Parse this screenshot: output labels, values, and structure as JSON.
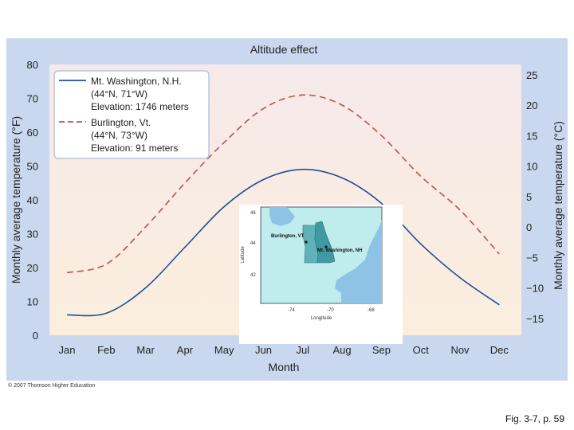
{
  "chart_data": {
    "type": "line",
    "title": "Altitude effect",
    "xlabel": "Month",
    "ylabel_left": "Monthly average temperature (°F)",
    "ylabel_right": "Monthly average temperature (°C)",
    "categories": [
      "Jan",
      "Feb",
      "Mar",
      "Apr",
      "May",
      "Jun",
      "Jul",
      "Aug",
      "Sep",
      "Oct",
      "Nov",
      "Dec"
    ],
    "ylim_f": [
      0,
      80
    ],
    "yticks_f": [
      "0",
      "10",
      "20",
      "30",
      "40",
      "50",
      "60",
      "70",
      "80"
    ],
    "ylim_c": [
      -17.8,
      26.7
    ],
    "yticks_c": [
      "−15",
      "−10",
      "−5",
      "0",
      "5",
      "10",
      "15",
      "20",
      "25"
    ],
    "series": [
      {
        "name": "Mt. Washington, N.H.",
        "legend_lines": [
          "Mt. Washington, N.H.",
          "(44°N, 71°W)",
          "Elevation: 1746 meters"
        ],
        "style": "solid",
        "color": "#1f4e96",
        "values": [
          6,
          6.5,
          14,
          26,
          38,
          46,
          49,
          46.5,
          39,
          27,
          17,
          9
        ]
      },
      {
        "name": "Burlington, Vt.",
        "legend_lines": [
          "Burlington, Vt.",
          "(44°N, 73°W)",
          "Elevation: 91 meters"
        ],
        "style": "dashed",
        "color": "#c0504d",
        "values": [
          18.5,
          21,
          32,
          45,
          57,
          67,
          71,
          68,
          59,
          47,
          37,
          24
        ]
      }
    ]
  },
  "inset_map": {
    "lat_label": "Latitude",
    "lon_label": "Longitude",
    "lat_ticks": [
      "46",
      "44",
      "42"
    ],
    "lon_ticks": [
      "-74",
      "-70",
      "-68"
    ],
    "places": [
      "Burlington, VT",
      "Mt. Washington, NH"
    ]
  },
  "copyright": "© 2007 Thomson Higher Education",
  "caption": "Fig. 3-7, p. 59",
  "colors": {
    "panel": "#c9d8ee",
    "plot_top": "#f6e9ea",
    "plot_bottom": "#fbeedd",
    "map_land": "#bfeced",
    "map_water": "#8ec3e6",
    "map_highlight": "#5fb3b8"
  }
}
